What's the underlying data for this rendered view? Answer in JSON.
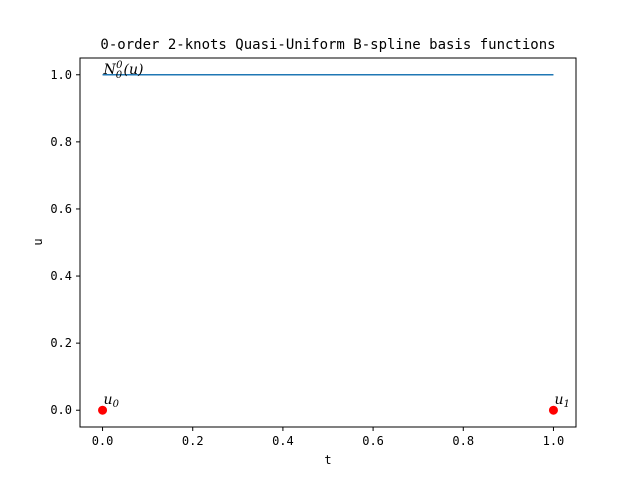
{
  "chart_data": {
    "type": "line",
    "title": "0-order 2-knots Quasi-Uniform B-spline basis functions",
    "xlabel": "t",
    "ylabel": "u",
    "xlim": [
      -0.05,
      1.05
    ],
    "ylim": [
      -0.05,
      1.05
    ],
    "xticks": [
      0.0,
      0.2,
      0.4,
      0.6,
      0.8,
      1.0
    ],
    "xtick_labels": [
      "0.0",
      "0.2",
      "0.4",
      "0.6",
      "0.8",
      "1.0"
    ],
    "yticks": [
      0.0,
      0.2,
      0.4,
      0.6,
      0.8,
      1.0
    ],
    "ytick_labels": [
      "0.0",
      "0.2",
      "0.4",
      "0.6",
      "0.8",
      "1.0"
    ],
    "grid": false,
    "series": [
      {
        "label": {
          "base": "N",
          "sub": "0",
          "sup": "0",
          "arg": "(u)"
        },
        "color": "#1f77b4",
        "x": [
          0.0,
          1.0
        ],
        "y": [
          1.0,
          1.0
        ]
      }
    ],
    "knots": {
      "color": "#ff0000",
      "points": [
        {
          "x": 0.0,
          "y": 0.0,
          "base": "u",
          "sub": "0"
        },
        {
          "x": 1.0,
          "y": 0.0,
          "base": "u",
          "sub": "1"
        }
      ]
    }
  }
}
